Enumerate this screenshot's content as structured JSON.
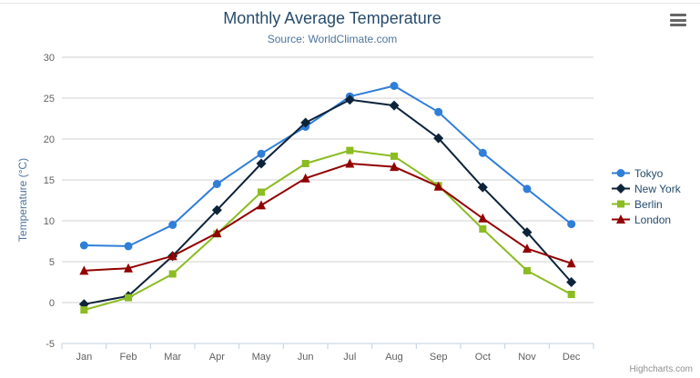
{
  "chart": {
    "credits": "Highcharts.com",
    "menu_icon": "hamburger-icon"
  },
  "chart_data": {
    "type": "line",
    "title": "Monthly Average Temperature",
    "subtitle": "Source: WorldClimate.com",
    "xlabel": "",
    "ylabel": "Temperature (°C)",
    "ylim": [
      -5,
      30
    ],
    "ytick_step": 5,
    "grid": true,
    "legend_position": "right",
    "categories": [
      "Jan",
      "Feb",
      "Mar",
      "Apr",
      "May",
      "Jun",
      "Jul",
      "Aug",
      "Sep",
      "Oct",
      "Nov",
      "Dec"
    ],
    "series": [
      {
        "name": "Tokyo",
        "color": "#2f7ed8",
        "marker": "circle",
        "values": [
          7.0,
          6.9,
          9.5,
          14.5,
          18.2,
          21.5,
          25.2,
          26.5,
          23.3,
          18.3,
          13.9,
          9.6
        ]
      },
      {
        "name": "New York",
        "color": "#0d233a",
        "marker": "diamond",
        "values": [
          -0.2,
          0.8,
          5.7,
          11.3,
          17.0,
          22.0,
          24.8,
          24.1,
          20.1,
          14.1,
          8.6,
          2.5
        ]
      },
      {
        "name": "Berlin",
        "color": "#8bbc21",
        "marker": "square",
        "values": [
          -0.9,
          0.6,
          3.5,
          8.4,
          13.5,
          17.0,
          18.6,
          17.9,
          14.3,
          9.0,
          3.9,
          1.0
        ]
      },
      {
        "name": "London",
        "color": "#910000",
        "marker": "triangle",
        "values": [
          3.9,
          4.2,
          5.7,
          8.5,
          11.9,
          15.2,
          17.0,
          16.6,
          14.2,
          10.3,
          6.6,
          4.8
        ]
      }
    ],
    "axis_colors": {
      "grid": "#d0d0d0",
      "axis_line": "#c0d0e0",
      "tick": "#c0d0e0",
      "label": "#606060"
    }
  }
}
